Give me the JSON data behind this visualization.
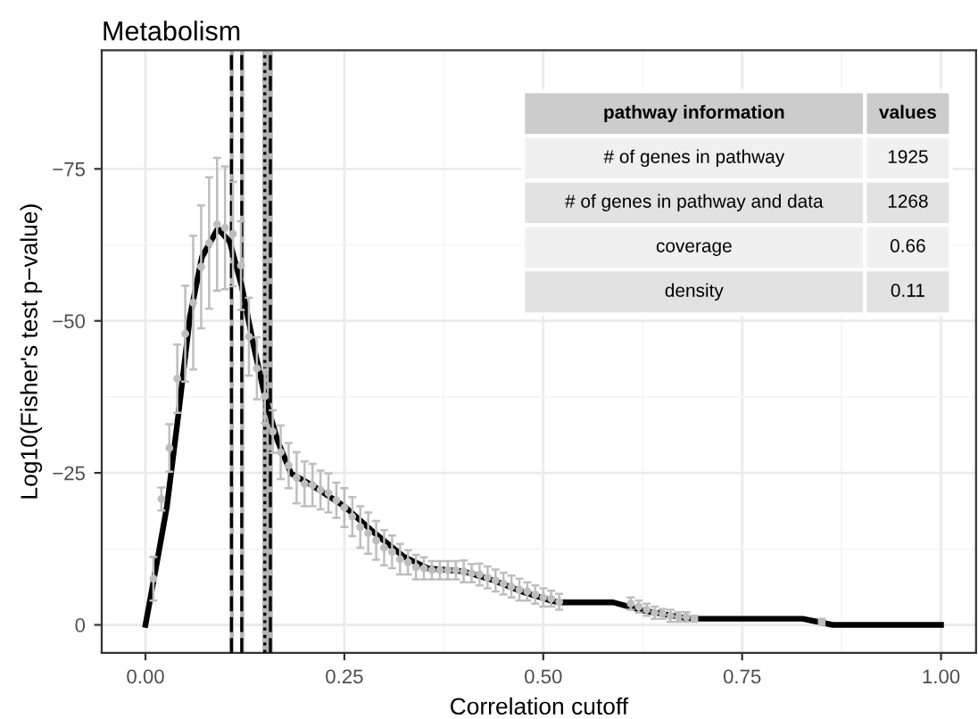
{
  "chart_data": {
    "type": "line",
    "title": "Metabolism",
    "xlabel": "Correlation cutoff",
    "ylabel": "Log10(Fisher's test p−value)",
    "xlim": [
      -0.055,
      1.044
    ],
    "ylim": [
      4.6,
      -94.5
    ],
    "xticks": [
      {
        "value": 0,
        "label": "0.00"
      },
      {
        "value": 0.25,
        "label": "0.25"
      },
      {
        "value": 0.5,
        "label": "0.50"
      },
      {
        "value": 0.75,
        "label": "0.75"
      },
      {
        "value": 1,
        "label": "1.00"
      }
    ],
    "yticks": [
      {
        "value": 0,
        "label": "0"
      },
      {
        "value": -25,
        "label": "−25"
      },
      {
        "value": -50,
        "label": "−50"
      },
      {
        "value": -75,
        "label": "−75"
      }
    ],
    "grid": true,
    "series": [
      {
        "type": "scatter",
        "marker": "circle",
        "color": "#bebebe",
        "x": [
          0.01,
          0.02,
          0.03,
          0.04,
          0.05,
          0.06,
          0.07,
          0.08,
          0.09,
          0.1,
          0.11,
          0.12,
          0.13,
          0.14,
          0.15,
          0.16,
          0.17,
          0.18,
          0.19,
          0.2,
          0.21,
          0.22,
          0.23,
          0.24,
          0.25,
          0.26,
          0.27,
          0.28,
          0.29,
          0.3,
          0.31,
          0.32,
          0.33,
          0.34,
          0.35,
          0.36,
          0.37,
          0.38,
          0.39,
          0.4,
          0.41,
          0.42,
          0.43,
          0.44,
          0.45,
          0.46,
          0.47,
          0.48,
          0.49,
          0.5,
          0.51,
          0.52,
          0.61,
          0.62,
          0.63,
          0.64,
          0.65,
          0.66,
          0.67,
          0.68,
          0.69,
          0.85
        ],
        "values": [
          -7.6,
          -20.7,
          -29.1,
          -40.5,
          -47.9,
          -53,
          -58.9,
          -62.8,
          -65.9,
          -65.3,
          -64.3,
          -59.1,
          -47.4,
          -42.2,
          -37.6,
          -31.8,
          -28.4,
          -26.2,
          -24.2,
          -23.2,
          -23,
          -22.2,
          -21.7,
          -20.5,
          -19.3,
          -17.8,
          -16.1,
          -15.1,
          -13.9,
          -12.7,
          -12,
          -10.8,
          -10.3,
          -9.5,
          -9.3,
          -9,
          -9,
          -9,
          -9,
          -8.8,
          -8.5,
          -8.3,
          -7.8,
          -7.3,
          -6.8,
          -6.3,
          -5.8,
          -5.5,
          -5,
          -4.5,
          -4.3,
          -3.8,
          -3.5,
          -3,
          -2.5,
          -2,
          -1.8,
          -1.5,
          -1.3,
          -1.3,
          -1,
          -0.5
        ],
        "errors": [
          3.6,
          1.9,
          3.9,
          5.6,
          7.9,
          11,
          10.1,
          10.8,
          10.9,
          10.1,
          8.6,
          7.3,
          6.4,
          5.1,
          4.4,
          3.5,
          4.4,
          3.7,
          4.2,
          3.7,
          3.5,
          3.2,
          3.2,
          2.9,
          3.2,
          3.2,
          3.4,
          3.4,
          3.2,
          2.9,
          2.7,
          2.5,
          2,
          2,
          1.8,
          1.5,
          1.5,
          1.5,
          1.5,
          1.8,
          1.5,
          1.8,
          1.8,
          1.8,
          1.8,
          1.8,
          1.8,
          1.5,
          1.5,
          1.5,
          1.3,
          1.3,
          1,
          1,
          1,
          1,
          0.8,
          1,
          0.8,
          0.8,
          0.5,
          0.5
        ]
      },
      {
        "type": "line",
        "color": "#000000",
        "line_style": "solid",
        "x": [
          0.0,
          0.015,
          0.027,
          0.041,
          0.056,
          0.071,
          0.091,
          0.106,
          0.121,
          0.136,
          0.151,
          0.166,
          0.183,
          0.209,
          0.25,
          0.288,
          0.325,
          0.355,
          0.4,
          0.438,
          0.475,
          0.512,
          0.521,
          0.588,
          0.624,
          0.684,
          0.826,
          0.864,
          1.0
        ],
        "values": [
          0,
          -10.7,
          -19.5,
          -34.2,
          -50.8,
          -60.5,
          -65.2,
          -63,
          -55.7,
          -45.9,
          -37.1,
          -30.3,
          -24.9,
          -23,
          -19.5,
          -15.1,
          -11.2,
          -9.3,
          -8.8,
          -7.3,
          -5.4,
          -3.9,
          -3.7,
          -3.7,
          -2.4,
          -1,
          -1,
          0,
          0
        ]
      }
    ],
    "bands": [
      {
        "axis": "x",
        "from": 0.106,
        "to": 0.111,
        "color": "#b3b3b3"
      },
      {
        "axis": "x",
        "from": 0.119,
        "to": 0.124,
        "color": "#b3b3b3"
      },
      {
        "axis": "x",
        "from": 0.147,
        "to": 0.16,
        "color": "#b3b3b3"
      }
    ],
    "ref_lines": [
      {
        "axis": "x",
        "value": 0.108,
        "line_style": "dashed",
        "color": "#000000"
      },
      {
        "axis": "x",
        "value": 0.121,
        "line_style": "dashed",
        "color": "#000000"
      },
      {
        "axis": "x",
        "value": 0.15,
        "line_style": "dotted",
        "color": "#000000"
      },
      {
        "axis": "x",
        "value": 0.157,
        "line_style": "dashed",
        "color": "#000000"
      }
    ],
    "annotations": [
      "pathway information",
      "values",
      "# of genes in pathway",
      "1925",
      "# of genes in pathway and data",
      "1268",
      "coverage",
      "0.66",
      "density",
      "0.11"
    ]
  }
}
